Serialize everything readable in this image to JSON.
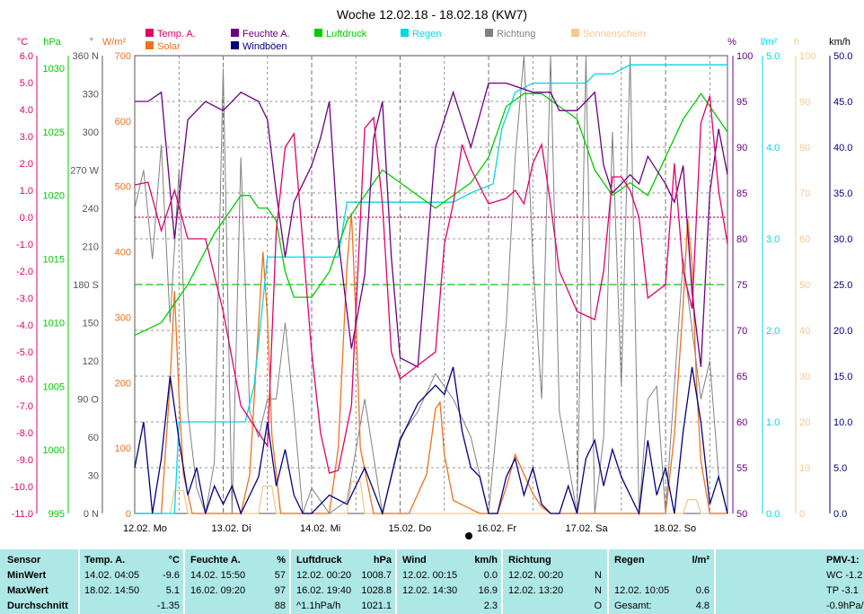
{
  "title": "Woche 12.02.18 - 18.02.18 (KW7)",
  "colors": {
    "temp": "#e0006a",
    "feuchte": "#6b0080",
    "luftdruck": "#00cc00",
    "regen": "#00d8e0",
    "richtung": "#808080",
    "sonne": "#f5c890",
    "solar": "#f07020",
    "wind": "#000080",
    "grid": "#777777"
  },
  "legend": [
    {
      "label": "Temp. A.",
      "color": "#e0006a"
    },
    {
      "label": "Solar",
      "color": "#f07020"
    },
    {
      "label": "Feuchte A.",
      "color": "#6b0080"
    },
    {
      "label": "Windböen",
      "color": "#000080"
    },
    {
      "label": "Luftdruck",
      "color": "#00cc00"
    },
    {
      "label": "Regen",
      "color": "#00d8e0"
    },
    {
      "label": "Richtung",
      "color": "#808080"
    },
    {
      "label": "Sonnenschein",
      "color": "#f5c890"
    }
  ],
  "chart_data": {
    "type": "line",
    "title": "Woche 12.02.18 - 18.02.18 (KW7)",
    "x_labels": [
      "12.02. Mo",
      "13.02. Di",
      "14.02. Mi",
      "15.02. Do",
      "16.02. Fr",
      "17.02. Sa",
      "18.02. So"
    ],
    "axes": {
      "temp": {
        "unit": "°C",
        "min": -11,
        "max": 6,
        "ticks": [
          "6.0",
          "5.0",
          "4.0",
          "3.0",
          "2.0",
          "1.0",
          "0.0",
          "-1.0",
          "-2.0",
          "-3.0",
          "-4.0",
          "-5.0",
          "-6.0",
          "-7.0",
          "-8.0",
          "-9.0",
          "-10.0",
          "-11.0"
        ]
      },
      "pressure": {
        "unit": "hPa",
        "ticks": [
          "1030",
          "1025",
          "1020",
          "1015",
          "1010",
          "1005",
          "1000",
          "995"
        ]
      },
      "direction": {
        "unit": "°",
        "ticks": [
          "360 N",
          "330",
          "300",
          "270 W",
          "240",
          "210",
          "180 S",
          "150",
          "120",
          "90 O",
          "60",
          "30",
          "0 N"
        ]
      },
      "solar": {
        "unit": "W/m²",
        "min": 0,
        "max": 700,
        "ticks": [
          "700",
          "600",
          "500",
          "400",
          "300",
          "200",
          "100",
          "0"
        ]
      },
      "humidity": {
        "unit": "%",
        "min": 50,
        "max": 100,
        "ticks": [
          "100",
          "95",
          "90",
          "85",
          "80",
          "75",
          "70",
          "65",
          "60",
          "55",
          "50"
        ]
      },
      "rain": {
        "unit": "l/m²",
        "min": 0,
        "max": 5,
        "ticks": [
          "5.0",
          "4.0",
          "3.0",
          "2.0",
          "1.0",
          "0.0"
        ]
      },
      "sunshine": {
        "unit": "h",
        "min": 0,
        "max": 100,
        "ticks": [
          "100",
          "90",
          "80",
          "70",
          "60",
          "50",
          "40",
          "30",
          "20",
          "10",
          "0"
        ]
      },
      "wind": {
        "unit": "km/h",
        "min": 0,
        "max": 50,
        "ticks": [
          "50.0",
          "45.0",
          "40.0",
          "35.0",
          "30.0",
          "25.0",
          "20.0",
          "15.0",
          "10.0",
          "5.0",
          "0.0"
        ]
      }
    },
    "series": [
      {
        "name": "Temp. A.",
        "axis": "temp",
        "x": [
          0,
          0.15,
          0.3,
          0.45,
          0.6,
          0.8,
          1.0,
          1.2,
          1.4,
          1.5,
          1.6,
          1.7,
          1.8,
          2.0,
          2.1,
          2.2,
          2.3,
          2.45,
          2.6,
          2.7,
          2.8,
          2.9,
          3.0,
          3.2,
          3.4,
          3.5,
          3.6,
          3.7,
          3.8,
          4.0,
          4.2,
          4.3,
          4.4,
          4.5,
          4.6,
          4.7,
          4.8,
          5.0,
          5.2,
          5.3,
          5.4,
          5.5,
          5.6,
          5.7,
          5.8,
          6.0,
          6.1,
          6.2,
          6.3,
          6.4,
          6.5,
          6.6,
          6.7
        ],
        "y": [
          1.2,
          1.3,
          -0.5,
          1.0,
          -0.8,
          -0.8,
          -3.5,
          -7.0,
          -8.0,
          -8.5,
          -0.5,
          2.6,
          3.1,
          -5.0,
          -8.0,
          -9.5,
          -9.4,
          -7.0,
          3.3,
          3.7,
          0.5,
          -5.0,
          -6.0,
          -5.5,
          -5.0,
          -1.0,
          0.5,
          2.7,
          1.8,
          0.5,
          0.7,
          1.0,
          0.5,
          2.0,
          2.7,
          0.5,
          -2.0,
          -3.5,
          -3.8,
          -2.0,
          1.5,
          1.5,
          1.0,
          0.0,
          -3.0,
          -2.5,
          2.0,
          -2.0,
          -3.4,
          3.5,
          4.5,
          1.0,
          -1.0
        ]
      },
      {
        "name": "Feuchte A.",
        "axis": "humidity",
        "x": [
          0,
          0.15,
          0.3,
          0.45,
          0.6,
          0.8,
          1.0,
          1.2,
          1.4,
          1.5,
          1.6,
          1.7,
          1.8,
          2.0,
          2.1,
          2.2,
          2.3,
          2.45,
          2.6,
          2.7,
          2.8,
          2.9,
          3.0,
          3.2,
          3.4,
          3.6,
          3.8,
          4.0,
          4.2,
          4.5,
          4.7,
          4.8,
          5.0,
          5.1,
          5.2,
          5.3,
          5.4,
          5.5,
          5.6,
          5.7,
          5.8,
          6.0,
          6.1,
          6.2,
          6.3,
          6.4,
          6.5,
          6.6,
          6.7
        ],
        "y": [
          95,
          95,
          96,
          80,
          93,
          95,
          94,
          96,
          95,
          93,
          85,
          78,
          84,
          88,
          91,
          95,
          80,
          68,
          76,
          91,
          95,
          78,
          67,
          66,
          90,
          96,
          90,
          97,
          97,
          96,
          96,
          94,
          94,
          95,
          96,
          88,
          85,
          86,
          87,
          86,
          89,
          86,
          84,
          88,
          74,
          66,
          85,
          92,
          87
        ]
      },
      {
        "name": "Luftdruck",
        "axis": "pressure",
        "x": [
          0,
          0.3,
          0.6,
          0.9,
          1.1,
          1.2,
          1.3,
          1.4,
          1.5,
          1.6,
          1.7,
          1.8,
          2.0,
          2.2,
          2.4,
          2.6,
          2.8,
          3.0,
          3.2,
          3.4,
          3.6,
          3.8,
          4.0,
          4.2,
          4.4,
          4.6,
          4.8,
          5.0,
          5.2,
          5.4,
          5.6,
          5.8,
          6.0,
          6.2,
          6.4,
          6.6,
          6.7
        ],
        "y": [
          1009,
          1010,
          1013,
          1017,
          1019,
          1020,
          1020,
          1019,
          1019,
          1018,
          1014,
          1012,
          1012,
          1014,
          1018,
          1020,
          1022,
          1021,
          1020,
          1019,
          1020,
          1021,
          1023,
          1027,
          1028,
          1028,
          1027,
          1026,
          1022,
          1020,
          1021,
          1020,
          1023,
          1026,
          1028,
          1026,
          1025
        ]
      },
      {
        "name": "Regen",
        "axis": "rain",
        "x": [
          0,
          0.45,
          0.5,
          1.25,
          1.35,
          1.5,
          1.55,
          2.3,
          2.4,
          2.9,
          3.0,
          3.6,
          3.8,
          4.05,
          4.15,
          4.3,
          4.5,
          5.0,
          5.1,
          5.2,
          5.4,
          5.6,
          6.3,
          6.7
        ],
        "y": [
          0,
          0,
          1.0,
          1.0,
          1.4,
          2.8,
          2.8,
          2.8,
          3.4,
          3.4,
          3.4,
          3.4,
          3.5,
          3.6,
          4.2,
          4.6,
          4.7,
          4.7,
          4.7,
          4.8,
          4.8,
          4.9,
          4.9,
          4.9
        ]
      },
      {
        "name": "Richtung",
        "axis": "direction",
        "x": [
          0,
          0.1,
          0.2,
          0.3,
          0.4,
          0.5,
          0.6,
          0.7,
          0.8,
          0.9,
          1.0,
          1.1,
          1.2,
          1.3,
          1.4,
          1.5,
          1.6,
          1.7,
          1.8,
          1.9,
          2.0,
          2.2,
          2.4,
          2.6,
          2.8,
          3.0,
          3.2,
          3.4,
          3.6,
          3.8,
          4.0,
          4.2,
          4.3,
          4.4,
          4.5,
          4.6,
          4.7,
          4.8,
          5.0,
          5.1,
          5.2,
          5.3,
          5.4,
          5.5,
          5.6,
          5.7,
          5.8,
          5.9,
          6.0,
          6.2,
          6.4,
          6.5,
          6.6,
          6.7
        ],
        "y": [
          240,
          270,
          200,
          290,
          150,
          270,
          80,
          20,
          0,
          40,
          350,
          0,
          280,
          80,
          60,
          90,
          90,
          150,
          80,
          0,
          20,
          0,
          10,
          90,
          0,
          60,
          80,
          110,
          90,
          60,
          0,
          150,
          280,
          360,
          200,
          90,
          360,
          80,
          0,
          360,
          0,
          60,
          300,
          100,
          360,
          0,
          90,
          100,
          0,
          200,
          90,
          120,
          30,
          0
        ]
      },
      {
        "name": "Solar",
        "axis": "solar",
        "x": [
          0,
          0.3,
          0.4,
          0.45,
          0.5,
          0.55,
          0.65,
          0.8,
          1.2,
          1.3,
          1.4,
          1.45,
          1.5,
          1.55,
          1.65,
          1.9,
          2.2,
          2.3,
          2.4,
          2.45,
          2.5,
          2.55,
          2.7,
          3.1,
          3.3,
          3.4,
          3.45,
          3.5,
          3.6,
          3.9,
          4.1,
          4.2,
          4.3,
          4.4,
          4.5,
          4.6,
          4.7,
          5.1,
          6.0,
          6.1,
          6.2,
          6.25,
          6.3,
          6.35,
          6.4,
          6.5,
          6.7
        ],
        "y": [
          0,
          0,
          200,
          340,
          180,
          60,
          0,
          0,
          0,
          60,
          290,
          400,
          300,
          120,
          0,
          0,
          0,
          100,
          380,
          460,
          300,
          100,
          0,
          0,
          60,
          160,
          170,
          90,
          20,
          0,
          0,
          40,
          90,
          60,
          30,
          10,
          0,
          0,
          0,
          120,
          320,
          450,
          380,
          200,
          80,
          0,
          0
        ]
      },
      {
        "name": "Sonnenschein",
        "axis": "sunshine",
        "x": [
          0,
          0.4,
          0.45,
          0.55,
          0.6,
          1.4,
          1.45,
          1.55,
          1.6,
          2.4,
          2.45,
          2.55,
          2.6,
          6.2,
          6.25,
          6.35,
          6.4,
          6.7
        ],
        "y": [
          0,
          0,
          5,
          5,
          0,
          0,
          6,
          6,
          0,
          0,
          7,
          7,
          0,
          0,
          3,
          3,
          0,
          0
        ]
      },
      {
        "name": "Windböen",
        "axis": "wind",
        "x": [
          0,
          0.1,
          0.2,
          0.3,
          0.4,
          0.5,
          0.6,
          0.7,
          0.8,
          0.9,
          1.0,
          1.1,
          1.2,
          1.3,
          1.4,
          1.5,
          1.6,
          1.7,
          1.8,
          1.9,
          2.0,
          2.2,
          2.4,
          2.6,
          2.8,
          3.0,
          3.2,
          3.4,
          3.5,
          3.6,
          3.7,
          3.8,
          3.9,
          4.0,
          4.1,
          4.2,
          4.3,
          4.4,
          4.5,
          4.6,
          4.7,
          4.8,
          4.9,
          5.0,
          5.1,
          5.2,
          5.3,
          5.4,
          5.5,
          5.6,
          5.7,
          5.8,
          5.9,
          6.0,
          6.1,
          6.2,
          6.3,
          6.4,
          6.5,
          6.6,
          6.7
        ],
        "y": [
          5,
          10,
          0,
          6,
          15,
          8,
          2,
          5,
          0,
          3,
          1,
          3,
          0,
          2,
          4,
          10,
          3,
          7,
          2,
          0,
          0,
          2,
          1,
          5,
          0,
          8,
          12,
          14,
          13,
          16,
          9,
          5,
          4,
          0,
          0,
          4,
          6,
          2,
          5,
          1,
          0,
          0,
          3,
          0,
          6,
          8,
          3,
          7,
          4,
          2,
          0,
          8,
          2,
          5,
          0,
          9,
          16,
          10,
          1,
          4,
          0
        ]
      }
    ],
    "reference_lines": [
      {
        "axis": "temp",
        "value": 0.0,
        "color": "#e0006a",
        "style": "dotted"
      },
      {
        "axis": "humidity",
        "value": 75,
        "color": "#00cc00",
        "style": "dashed"
      }
    ]
  },
  "stats": {
    "header": {
      "sensor": "Sensor",
      "temp": "Temp. A.",
      "temp_unit": "°C",
      "feuchte": "Feuchte A.",
      "feuchte_unit": "%",
      "luft": "Luftdruck",
      "luft_unit": "hPa",
      "wind": "Wind",
      "wind_unit": "km/h",
      "richtung": "Richtung",
      "regen": "Regen",
      "regen_unit": "l/m²",
      "pmv": "PMV-1:"
    },
    "rows": [
      {
        "label": "MinWert",
        "temp_time": "14.02.  04:05",
        "temp_val": "-9.6",
        "feuchte_time": "14.02.  15:50",
        "feuchte_val": "57",
        "luft_time": "12.02.  00:20",
        "luft_val": "1008.7",
        "wind_time": "12.02.  00:15",
        "wind_val": "0.0",
        "richt_time": "12.02.  00:20",
        "richt_val": "N",
        "regen_time": "",
        "regen_val": "",
        "pmv": "WC -1.2"
      },
      {
        "label": "MaxWert",
        "temp_time": "18.02.  14:50",
        "temp_val": "5.1",
        "feuchte_time": "16.02.  09:20",
        "feuchte_val": "97",
        "luft_time": "16.02.  19:40",
        "luft_val": "1028.8",
        "wind_time": "12.02.  14:30",
        "wind_val": "16.9",
        "richt_time": "12.02.  13:20",
        "richt_val": "N",
        "regen_time": "12.02.  10:05",
        "regen_val": "0.6",
        "pmv": "TP -3.1"
      },
      {
        "label": "Durchschnitt",
        "temp_time": "",
        "temp_val": "-1.35",
        "feuchte_time": "",
        "feuchte_val": "88",
        "luft_time": "^1.1hPa/h",
        "luft_val": "1021.1",
        "wind_time": "",
        "wind_val": "2.3",
        "richt_time": "",
        "richt_val": "O",
        "regen_time": "Gesamt:",
        "regen_val": "4.8",
        "pmv": "-0.9hPa/"
      }
    ]
  }
}
